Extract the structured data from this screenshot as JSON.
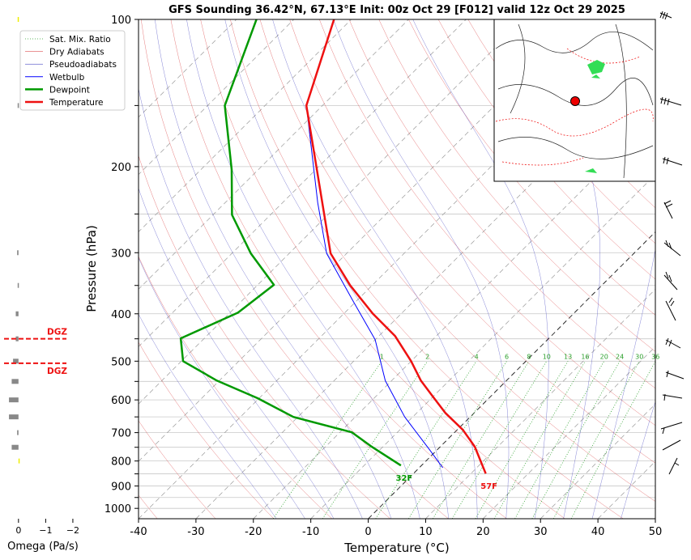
{
  "chart_data": {
    "type": "skewt",
    "title": "GFS Sounding 36.42°N, 67.13°E Init: 00z Oct 29 [F012] valid 12z Oct 29 2025",
    "x_label": "Temperature (°C)",
    "y_label": "Pressure (hPa)",
    "xlim": [
      -40,
      50
    ],
    "xticks": [
      -40,
      -30,
      -20,
      -10,
      0,
      10,
      20,
      30,
      40,
      50
    ],
    "ylim": [
      1050,
      100
    ],
    "yticks": [
      100,
      200,
      300,
      400,
      500,
      600,
      700,
      800,
      900,
      1000
    ],
    "yminor": [
      150,
      250,
      350,
      450,
      550,
      650,
      750,
      850,
      950
    ],
    "log_y": true,
    "grid": true,
    "legend": "upper left",
    "reference_lines": [
      {
        "name": "Sat. Mix. Ratio",
        "color": "#2ca02c"
      },
      {
        "name": "Dry Adiabats",
        "color": "#d62728"
      },
      {
        "name": "Pseudoadiabats",
        "color": "#1f1fb4"
      }
    ],
    "mixing_ratio_labels": [
      1,
      2,
      4,
      6,
      8,
      10,
      13,
      16,
      20,
      24,
      30,
      36
    ],
    "series": [
      {
        "name": "Wetbulb",
        "color": "#0000ff",
        "pressure": [
          826,
          757,
          650,
          548,
          452,
          374,
          301,
          237,
          150
        ],
        "values": [
          4.1,
          -1.5,
          -11.4,
          -21.1,
          -30.0,
          -41.0,
          -53.5,
          -63.9,
          -82.8
        ]
      },
      {
        "name": "Dewpoint",
        "color": "#009900",
        "pressure": [
          817,
          746,
          699,
          650,
          595,
          548,
          500,
          449,
          398,
          349,
          301,
          251,
          203,
          150,
          100
        ],
        "values": [
          -3.6,
          -12.2,
          -17.9,
          -30.8,
          -40.3,
          -50.4,
          -59.7,
          -64.1,
          -58.6,
          -57.2,
          -66.7,
          -76.7,
          -84.6,
          -97.0,
          -106.5
        ],
        "surface_label": "32F"
      },
      {
        "name": "Temperature",
        "color": "#ee1111",
        "pressure": [
          849,
          748,
          691,
          638,
          591,
          548,
          500,
          444,
          400,
          350,
          301,
          150,
          100
        ],
        "values": [
          12.6,
          6.0,
          1.0,
          -5.0,
          -10.0,
          -14.9,
          -20.0,
          -27.2,
          -34.9,
          -43.8,
          -52.8,
          -82.8,
          -93.0
        ],
        "surface_label": "57F"
      }
    ],
    "omega": {
      "x_label": "Omega (Pa/s)",
      "xlim": [
        0.68,
        -2.3
      ],
      "xticks": [
        0,
        {
          "value": -1,
          "label": "−1"
        },
        {
          "value": -2,
          "label": "−2"
        }
      ],
      "pressure": [
        100,
        150,
        300,
        350,
        400,
        450,
        500,
        550,
        600,
        650,
        700,
        750,
        800
      ],
      "values": [
        0.03,
        0.03,
        0.05,
        0.03,
        0.1,
        0.1,
        0.2,
        0.25,
        0.35,
        0.35,
        0.05,
        0.25,
        -0.04
      ],
      "colors": [
        "#eeee00",
        "#888888",
        "#888888",
        "#888888",
        "#888888",
        "#888888",
        "#888888",
        "#888888",
        "#888888",
        "#888888",
        "#888888",
        "#888888",
        "#eeee00"
      ]
    },
    "dgz": {
      "pressures": [
        450,
        505
      ],
      "labels": [
        "DGZ",
        "DGZ"
      ],
      "color": "#ee1111"
    }
  }
}
